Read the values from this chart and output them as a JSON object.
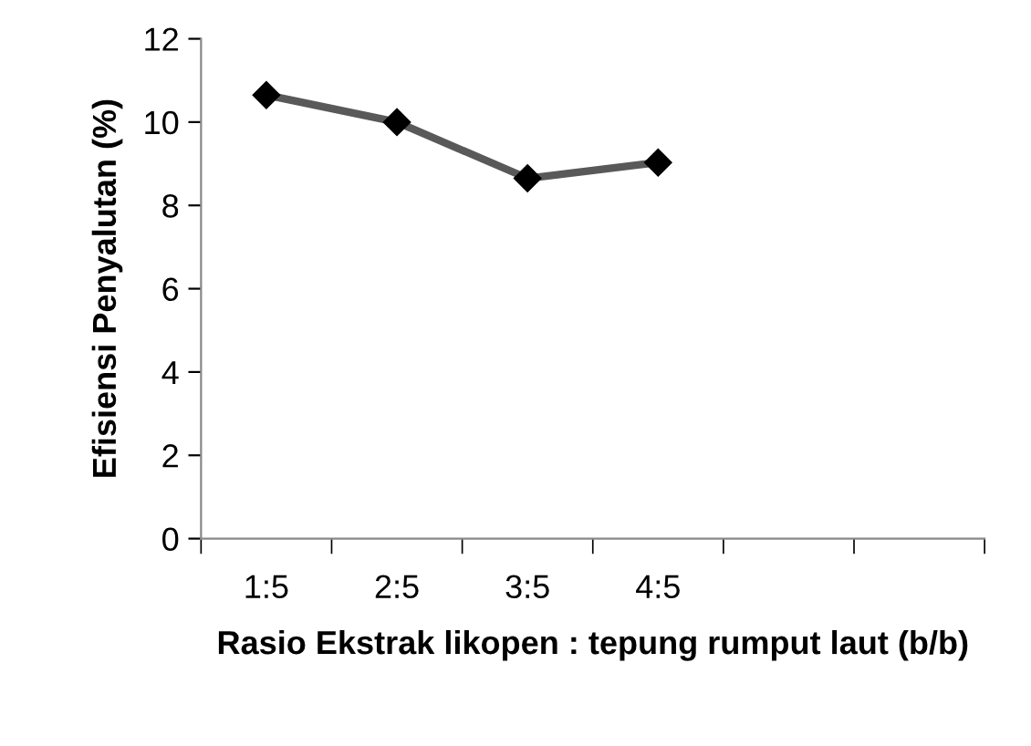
{
  "chart_data": {
    "type": "line",
    "xlabel": "Rasio Ekstrak likopen : tepung rumput laut (b/b)",
    "ylabel": "Efisiensi Penyalutan (%)",
    "categories": [
      "1:5",
      "2:5",
      "3:5",
      "4:5",
      null,
      null
    ],
    "series": [
      {
        "color": "#595959",
        "values": [
          10.65,
          10.0,
          8.65,
          9.03,
          null,
          null
        ]
      }
    ],
    "ylim": [
      0,
      12
    ],
    "yticks": [
      0,
      2,
      4,
      6,
      8,
      10,
      12
    ],
    "marker": "diamond",
    "line_style": "solid",
    "grid": false,
    "legend": false
  }
}
